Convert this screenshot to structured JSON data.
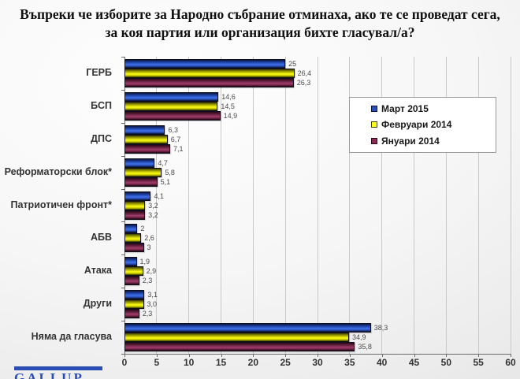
{
  "title": "Въпреки че изборите за Народно събрание отминаха, ако те се проведат сега, за коя партия или организация бихте гласувал/а?",
  "chart_data": {
    "type": "bar",
    "orientation": "horizontal",
    "title": "Въпреки че изборите за Народно събрание отминаха, ако те се проведат сега, за коя партия или организация бихте гласувал/а?",
    "categories": [
      "ГЕРБ",
      "БСП",
      "ДПС",
      "Реформаторски блок*",
      "Патриотичен фронт*",
      "АБВ",
      "Атака",
      "Други",
      "Няма да гласува"
    ],
    "series": [
      {
        "name": "Март 2015",
        "color": "#2a50b8",
        "values": [
          25,
          14.6,
          6.3,
          4.7,
          4.1,
          2,
          1.9,
          3.1,
          38.3
        ],
        "labels": [
          "25",
          "14,6",
          "6,3",
          "4,7",
          "4,1",
          "2",
          "1,9",
          "3,1",
          "38,3"
        ]
      },
      {
        "name": "Февруари 2014",
        "color": "#ffff14",
        "values": [
          26.4,
          14.5,
          6.7,
          5.8,
          3.2,
          2.6,
          2.9,
          3.0,
          34.9
        ],
        "labels": [
          "26,4",
          "14,5",
          "6,7",
          "5,8",
          "3,2",
          "2,6",
          "2,9",
          "3,0",
          "34,9"
        ]
      },
      {
        "name": "Януари 2014",
        "color": "#8b2a55",
        "values": [
          26.3,
          14.9,
          7.1,
          5.1,
          3.2,
          3,
          2.3,
          2.3,
          35.8
        ],
        "labels": [
          "26,3",
          "14,9",
          "7,1",
          "5,1",
          "3,2",
          "3",
          "2,3",
          "2,3",
          "35,8"
        ]
      }
    ],
    "xlim": [
      0,
      60
    ],
    "x_ticks": [
      "0",
      "5",
      "10",
      "15",
      "20",
      "25",
      "30",
      "35",
      "40",
      "45",
      "50",
      "55",
      "60"
    ],
    "grid": true,
    "legend_position": "upper right"
  },
  "logo": {
    "text": "GALLUP"
  }
}
